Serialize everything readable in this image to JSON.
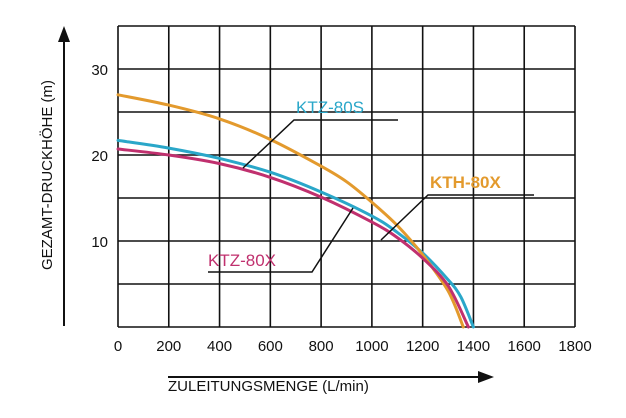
{
  "chart_data": {
    "type": "line",
    "xlabel": "ZULEITUNGSMENGE (L/min)",
    "ylabel": "GEZAMT-DRUCKHÖHE (m)",
    "xlim": [
      0,
      1800
    ],
    "ylim": [
      0,
      35
    ],
    "x_ticks": [
      "0",
      "200",
      "400",
      "600",
      "800",
      "1000",
      "1200",
      "1400",
      "1600",
      "1800"
    ],
    "y_ticks": [
      "10",
      "20",
      "30"
    ],
    "grid": true,
    "series": [
      {
        "name": "KTZ-80S",
        "color": "#2aa7c9",
        "points": [
          [
            0,
            21.7
          ],
          [
            200,
            20.8
          ],
          [
            400,
            19.6
          ],
          [
            600,
            18.0
          ],
          [
            800,
            15.7
          ],
          [
            1000,
            12.9
          ],
          [
            1100,
            11.0
          ],
          [
            1200,
            8.6
          ],
          [
            1300,
            5.5
          ],
          [
            1350,
            3.5
          ],
          [
            1400,
            0
          ]
        ]
      },
      {
        "name": "KTH-80X",
        "color": "#e39a2d",
        "points": [
          [
            0,
            27.0
          ],
          [
            200,
            25.8
          ],
          [
            400,
            24.2
          ],
          [
            600,
            21.8
          ],
          [
            800,
            18.7
          ],
          [
            900,
            16.9
          ],
          [
            1000,
            14.5
          ],
          [
            1100,
            11.8
          ],
          [
            1200,
            8.4
          ],
          [
            1300,
            4.2
          ],
          [
            1360,
            0
          ]
        ]
      },
      {
        "name": "KTZ-80X",
        "color": "#c0306e",
        "points": [
          [
            0,
            20.7
          ],
          [
            200,
            20.0
          ],
          [
            400,
            19.0
          ],
          [
            600,
            17.4
          ],
          [
            800,
            15.1
          ],
          [
            1000,
            12.2
          ],
          [
            1100,
            10.4
          ],
          [
            1200,
            8.0
          ],
          [
            1300,
            4.8
          ],
          [
            1380,
            0
          ]
        ]
      }
    ],
    "labels": [
      {
        "series": "KTZ-80S",
        "text": "KTZ-80S",
        "color": "#2aa7c9",
        "bold": false
      },
      {
        "series": "KTH-80X",
        "text": "KTH-80X",
        "color": "#e39a2d",
        "bold": true
      },
      {
        "series": "KTZ-80X",
        "text": "KTZ-80X",
        "color": "#c0306e",
        "bold": false
      }
    ]
  }
}
